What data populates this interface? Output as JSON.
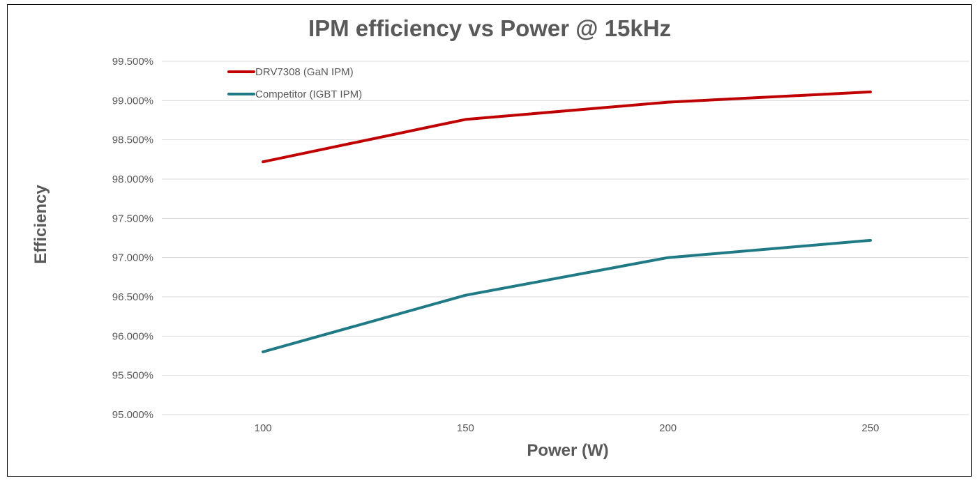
{
  "chart_data": {
    "type": "line",
    "title": "IPM efficiency vs Power @ 15kHz",
    "xlabel": "Power (W)",
    "ylabel": "Efficiency",
    "x": [
      100,
      150,
      200,
      250
    ],
    "x_tick_labels": [
      "100",
      "150",
      "200",
      "250"
    ],
    "ylim": [
      0.95,
      0.995
    ],
    "y_ticks": [
      0.95,
      0.955,
      0.96,
      0.965,
      0.97,
      0.975,
      0.98,
      0.985,
      0.99,
      0.995
    ],
    "y_tick_labels": [
      "95.000%",
      "95.500%",
      "96.000%",
      "96.500%",
      "97.000%",
      "97.500%",
      "98.000%",
      "98.500%",
      "99.000%",
      "99.500%"
    ],
    "grid": "horizontal",
    "legend_position": "top-left",
    "series": [
      {
        "name": "DRV7308 (GaN IPM)",
        "color": "#c00000",
        "values": [
          0.9822,
          0.9876,
          0.9898,
          0.9911
        ]
      },
      {
        "name": "Competitor (IGBT IPM)",
        "color": "#1f7a86",
        "values": [
          0.958,
          0.9652,
          0.97,
          0.9722
        ]
      }
    ]
  }
}
